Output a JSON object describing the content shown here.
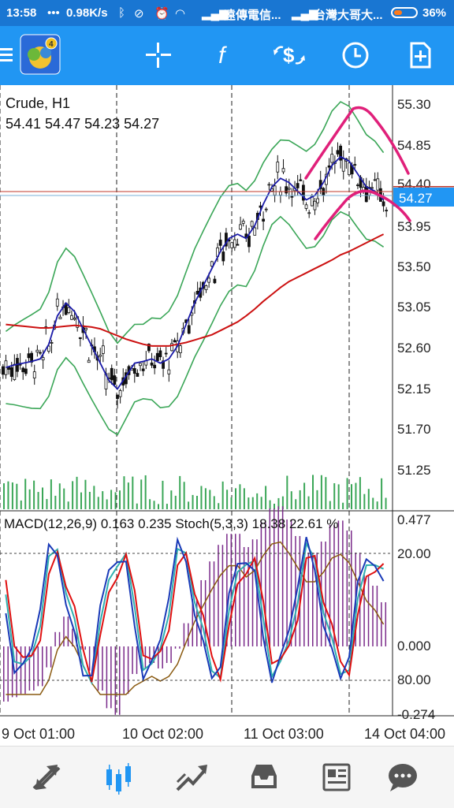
{
  "status_bar": {
    "time": "13:58",
    "dots": "•••",
    "speed": "0.98K/s",
    "carrier1": "遠傳電信...",
    "carrier2": "台灣大哥大...",
    "battery": "36%"
  },
  "toolbar": {
    "icons": [
      "menu-icon",
      "app-logo",
      "crosshair-icon",
      "indicator-f-icon",
      "trade-icon",
      "clock-icon",
      "new-order-icon"
    ],
    "accent": "#2196f3"
  },
  "main_chart": {
    "symbol_timeframe": "Crude, H1",
    "ohlc": "54.41 54.47 54.23 54.27",
    "price_labels": [
      "55.30",
      "54.85",
      "54.40",
      "53.95",
      "53.50",
      "53.05",
      "52.60",
      "52.15",
      "51.70",
      "51.25"
    ],
    "current_price": "54.27",
    "current_price_color": "#2196f3"
  },
  "sub_chart": {
    "indicator_label": "MACD(12,26,9) 0.163 0.235 Stoch(5,3,3) 18.38 22.61 %",
    "axis_labels": [
      "0.477",
      "20.00",
      "0.000",
      "80.00",
      "-0.274"
    ]
  },
  "time_axis": {
    "labels": [
      "9 Oct 01:00",
      "10 Oct 02:00",
      "11 Oct 03:00",
      "14 Oct 04:00"
    ]
  },
  "chart_data": {
    "type": "line",
    "title": "Crude, H1",
    "ylim": [
      51.05,
      55.45
    ],
    "series": [
      {
        "values": [
          52.35,
          52.38,
          52.4,
          52.42,
          52.45,
          52.62,
          52.95,
          53.1,
          53.0,
          52.8,
          52.6,
          52.4,
          52.2,
          52.1,
          52.25,
          52.4,
          52.42,
          52.45,
          52.4,
          52.45,
          52.6,
          52.85,
          53.1,
          53.3,
          53.5,
          53.7,
          53.85,
          53.9,
          53.85,
          54.0,
          54.25,
          54.45,
          54.55,
          54.5,
          54.4,
          54.3,
          54.35,
          54.5,
          54.7,
          54.8,
          54.75,
          54.6,
          54.45,
          54.4,
          54.3
        ]
      },
      {
        "values": [
          52.85,
          52.84,
          52.83,
          52.82,
          52.81,
          52.81,
          52.82,
          52.83,
          52.84,
          52.83,
          52.82,
          52.8,
          52.76,
          52.72,
          52.68,
          52.65,
          52.62,
          52.6,
          52.6,
          52.6,
          52.62,
          52.64,
          52.67,
          52.7,
          52.73,
          52.78,
          52.83,
          52.88,
          52.95,
          53.03,
          53.12,
          53.2,
          53.28,
          53.35,
          53.4,
          53.45,
          53.5,
          53.55,
          53.6,
          53.66,
          53.7,
          53.75,
          53.8,
          53.85,
          53.9
        ]
      }
    ]
  },
  "colors": {
    "bollinger": "#3aa657",
    "ma_fast": "#1a1aa8",
    "ma_slow": "#cc1111",
    "annotation": "#e0207a",
    "macd_hist": "#7a2a8a",
    "stoch_main": "#1a3ab8",
    "stoch_signal": "#e01010",
    "stoch_teal": "#30b0b0",
    "macd_signal": "#8a5a10"
  }
}
